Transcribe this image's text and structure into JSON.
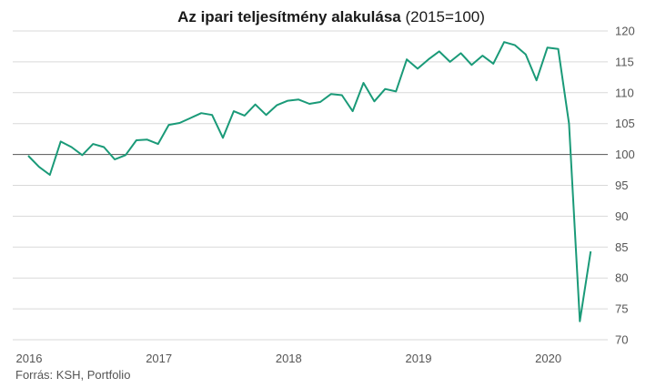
{
  "chart_data": {
    "type": "line",
    "title_bold": "Az ipari teljesítmény alakulása",
    "title_rest": "(2015=100)",
    "source": "Forrás: KSH, Portfolio",
    "xlabel": "",
    "ylabel": "",
    "ylim": [
      70,
      120
    ],
    "yticks": [
      70,
      75,
      80,
      85,
      90,
      95,
      100,
      105,
      110,
      115,
      120
    ],
    "xlim": [
      2016,
      2020.4583
    ],
    "xticks": [
      {
        "value": 2016,
        "label": "2016"
      },
      {
        "value": 2017,
        "label": "2017"
      },
      {
        "value": 2018,
        "label": "2018"
      },
      {
        "value": 2019,
        "label": "2019"
      },
      {
        "value": 2020,
        "label": "2020"
      }
    ],
    "reference_line": 100,
    "grid": true,
    "line_color": "#1a9a78",
    "series": [
      {
        "start": "2016-01",
        "frequency": "monthly",
        "values": [
          99.8,
          98.0,
          96.7,
          102.1,
          101.2,
          99.9,
          101.7,
          101.2,
          99.2,
          99.9,
          102.3,
          102.4,
          101.7,
          104.8,
          105.1,
          105.9,
          106.7,
          106.4,
          102.7,
          107.0,
          106.3,
          108.1,
          106.4,
          108.0,
          108.7,
          108.9,
          108.2,
          108.5,
          109.8,
          109.6,
          107.0,
          111.6,
          108.6,
          110.6,
          110.2,
          115.4,
          113.9,
          115.4,
          116.7,
          115.0,
          116.4,
          114.5,
          116.0,
          114.7,
          118.2,
          117.7,
          116.2,
          112.0,
          117.3,
          117.1,
          105.0,
          73.0,
          84.3
        ]
      }
    ]
  }
}
